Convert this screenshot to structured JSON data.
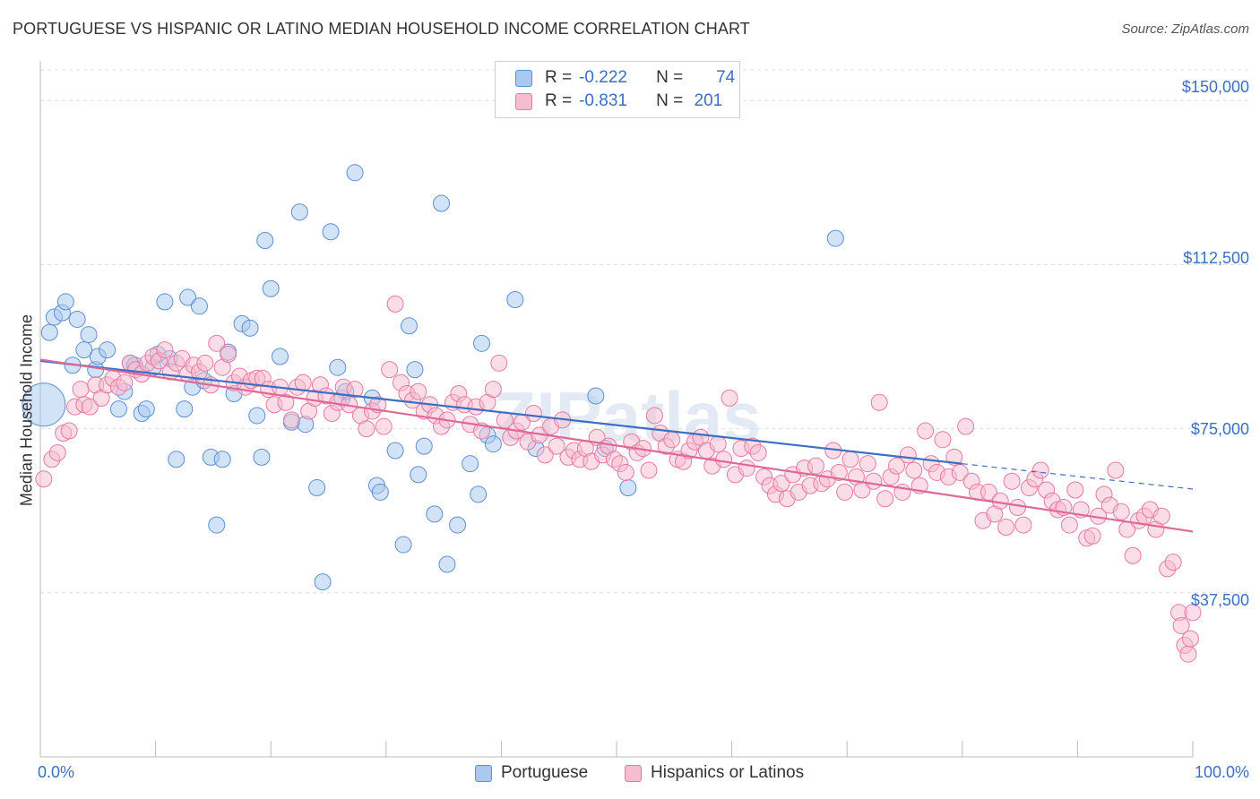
{
  "title": "PORTUGUESE VS HISPANIC OR LATINO MEDIAN HOUSEHOLD INCOME CORRELATION CHART",
  "source": "Source: ZipAtlas.com",
  "watermark": "ZIPatlas",
  "legend": {
    "r_label": "R =",
    "n_label": "N =",
    "rows": [
      {
        "r": "-0.222",
        "n": "74",
        "color": "#a8c8f0",
        "border": "#5b8fd6"
      },
      {
        "r": "-0.831",
        "n": "201",
        "color": "#f8bcd0",
        "border": "#e9799f"
      }
    ]
  },
  "bottom_legend": [
    "Portuguese",
    "Hispanics or Latinos"
  ],
  "chart_data": {
    "type": "scatter",
    "title": "PORTUGUESE VS HISPANIC OR LATINO MEDIAN HOUSEHOLD INCOME CORRELATION CHART",
    "xlabel": "",
    "ylabel": "Median Household Income",
    "xlim": [
      0,
      100
    ],
    "ylim": [
      0,
      157000
    ],
    "x_tick_labels": [
      "0.0%",
      "100.0%"
    ],
    "y_ticks": [
      37500,
      75000,
      112500,
      150000
    ],
    "y_tick_labels": [
      "$37,500",
      "$75,000",
      "$112,500",
      "$150,000"
    ],
    "grid": true,
    "legend_position": "top-center",
    "series": [
      {
        "name": "Portuguese",
        "color": "#a8c8f0",
        "edge": "#5b8fd6",
        "trend": {
          "x0": 0,
          "y0": 90500,
          "x1": 80,
          "y1": 67000,
          "dash_to": 100,
          "dash_y": 61200
        },
        "points": [
          [
            0.3,
            80500
          ],
          [
            0.8,
            97000
          ],
          [
            1.2,
            100500
          ],
          [
            1.9,
            101500
          ],
          [
            2.2,
            104000
          ],
          [
            2.8,
            89500
          ],
          [
            3.2,
            100000
          ],
          [
            3.8,
            93000
          ],
          [
            4.2,
            96500
          ],
          [
            4.8,
            88500
          ],
          [
            5.0,
            91500
          ],
          [
            5.8,
            93000
          ],
          [
            6.8,
            79500
          ],
          [
            7.3,
            83500
          ],
          [
            7.8,
            90000
          ],
          [
            8.2,
            89500
          ],
          [
            8.8,
            78500
          ],
          [
            9.2,
            79500
          ],
          [
            9.8,
            89000
          ],
          [
            10.2,
            92000
          ],
          [
            10.8,
            104000
          ],
          [
            11.2,
            91000
          ],
          [
            11.8,
            68000
          ],
          [
            12.5,
            79500
          ],
          [
            12.8,
            105000
          ],
          [
            13.2,
            84500
          ],
          [
            13.8,
            103000
          ],
          [
            14.2,
            86000
          ],
          [
            14.8,
            68500
          ],
          [
            15.3,
            53000
          ],
          [
            15.8,
            68000
          ],
          [
            16.3,
            92500
          ],
          [
            16.8,
            83000
          ],
          [
            17.5,
            99000
          ],
          [
            18.2,
            98000
          ],
          [
            18.8,
            78000
          ],
          [
            19.2,
            68500
          ],
          [
            19.5,
            118000
          ],
          [
            20.0,
            107000
          ],
          [
            20.8,
            91500
          ],
          [
            21.8,
            76500
          ],
          [
            22.5,
            124500
          ],
          [
            23.0,
            76000
          ],
          [
            24.0,
            61500
          ],
          [
            24.5,
            40000
          ],
          [
            25.2,
            120000
          ],
          [
            25.8,
            89000
          ],
          [
            26.2,
            82000
          ],
          [
            26.5,
            83500
          ],
          [
            27.3,
            133500
          ],
          [
            28.8,
            82000
          ],
          [
            29.2,
            62000
          ],
          [
            29.5,
            60500
          ],
          [
            30.8,
            70000
          ],
          [
            31.5,
            48500
          ],
          [
            32.0,
            98500
          ],
          [
            32.5,
            88500
          ],
          [
            32.8,
            64500
          ],
          [
            33.3,
            71000
          ],
          [
            34.2,
            55500
          ],
          [
            34.8,
            126500
          ],
          [
            35.3,
            44000
          ],
          [
            36.2,
            53000
          ],
          [
            37.3,
            67000
          ],
          [
            38.0,
            60000
          ],
          [
            38.3,
            94500
          ],
          [
            38.8,
            73500
          ],
          [
            39.3,
            71500
          ],
          [
            41.2,
            104500
          ],
          [
            43.0,
            70500
          ],
          [
            48.2,
            82500
          ],
          [
            49.0,
            70500
          ],
          [
            51.0,
            61500
          ],
          [
            69.0,
            118500
          ]
        ]
      },
      {
        "name": "Hispanics or Latinos",
        "color": "#f8bcd0",
        "edge": "#e9799f",
        "trend": {
          "x0": 0,
          "y0": 90800,
          "x1": 100,
          "y1": 51500
        },
        "points": [
          [
            0.3,
            63500
          ],
          [
            1.0,
            68000
          ],
          [
            1.5,
            69500
          ],
          [
            2.0,
            74000
          ],
          [
            2.5,
            74500
          ],
          [
            3.0,
            80000
          ],
          [
            3.5,
            84000
          ],
          [
            3.8,
            80500
          ],
          [
            4.3,
            80000
          ],
          [
            4.8,
            85000
          ],
          [
            5.3,
            82000
          ],
          [
            5.8,
            85000
          ],
          [
            6.3,
            86500
          ],
          [
            6.8,
            84500
          ],
          [
            7.3,
            85500
          ],
          [
            7.8,
            90000
          ],
          [
            8.3,
            88500
          ],
          [
            8.8,
            87500
          ],
          [
            9.3,
            90000
          ],
          [
            9.8,
            91500
          ],
          [
            10.3,
            90500
          ],
          [
            10.8,
            93000
          ],
          [
            11.3,
            88000
          ],
          [
            11.8,
            90000
          ],
          [
            12.3,
            91000
          ],
          [
            12.8,
            87500
          ],
          [
            13.3,
            89500
          ],
          [
            13.8,
            88000
          ],
          [
            14.3,
            90000
          ],
          [
            14.8,
            85000
          ],
          [
            15.3,
            94500
          ],
          [
            15.8,
            89000
          ],
          [
            16.3,
            92000
          ],
          [
            16.8,
            85500
          ],
          [
            17.3,
            87000
          ],
          [
            17.8,
            84500
          ],
          [
            18.3,
            86000
          ],
          [
            18.8,
            86500
          ],
          [
            19.3,
            86500
          ],
          [
            19.8,
            84000
          ],
          [
            20.3,
            80500
          ],
          [
            20.8,
            84500
          ],
          [
            21.3,
            81000
          ],
          [
            21.8,
            77000
          ],
          [
            22.3,
            84500
          ],
          [
            22.8,
            85500
          ],
          [
            23.3,
            79000
          ],
          [
            23.8,
            82000
          ],
          [
            24.3,
            85000
          ],
          [
            24.8,
            82500
          ],
          [
            25.3,
            78500
          ],
          [
            25.8,
            81000
          ],
          [
            26.3,
            84500
          ],
          [
            26.8,
            80500
          ],
          [
            27.3,
            84000
          ],
          [
            27.8,
            78000
          ],
          [
            28.3,
            75000
          ],
          [
            28.8,
            79000
          ],
          [
            29.3,
            80500
          ],
          [
            29.8,
            75500
          ],
          [
            30.3,
            88500
          ],
          [
            30.8,
            103500
          ],
          [
            31.3,
            85500
          ],
          [
            31.8,
            83000
          ],
          [
            32.3,
            81500
          ],
          [
            32.8,
            83500
          ],
          [
            33.3,
            79000
          ],
          [
            33.8,
            80500
          ],
          [
            34.3,
            78000
          ],
          [
            34.8,
            75500
          ],
          [
            35.3,
            77000
          ],
          [
            35.8,
            81000
          ],
          [
            36.3,
            83000
          ],
          [
            36.8,
            80500
          ],
          [
            37.3,
            76000
          ],
          [
            37.8,
            80000
          ],
          [
            38.3,
            74500
          ],
          [
            38.8,
            81000
          ],
          [
            39.3,
            84000
          ],
          [
            39.8,
            90000
          ],
          [
            40.3,
            77000
          ],
          [
            40.8,
            73000
          ],
          [
            41.3,
            74500
          ],
          [
            41.8,
            76500
          ],
          [
            42.3,
            72000
          ],
          [
            42.8,
            78500
          ],
          [
            43.3,
            73500
          ],
          [
            43.8,
            69000
          ],
          [
            44.3,
            75500
          ],
          [
            44.8,
            71000
          ],
          [
            45.3,
            77000
          ],
          [
            45.8,
            68500
          ],
          [
            46.3,
            70000
          ],
          [
            46.8,
            68000
          ],
          [
            47.3,
            70500
          ],
          [
            47.8,
            67500
          ],
          [
            48.3,
            73000
          ],
          [
            48.8,
            69000
          ],
          [
            49.3,
            71000
          ],
          [
            49.8,
            68000
          ],
          [
            50.3,
            67000
          ],
          [
            50.8,
            65000
          ],
          [
            51.3,
            72000
          ],
          [
            51.8,
            69500
          ],
          [
            52.3,
            70500
          ],
          [
            52.8,
            65500
          ],
          [
            53.3,
            78000
          ],
          [
            53.8,
            74000
          ],
          [
            54.3,
            71000
          ],
          [
            54.8,
            72500
          ],
          [
            55.3,
            68000
          ],
          [
            55.8,
            67500
          ],
          [
            56.3,
            70000
          ],
          [
            56.8,
            72000
          ],
          [
            57.3,
            73000
          ],
          [
            57.8,
            70000
          ],
          [
            58.3,
            66500
          ],
          [
            58.8,
            71500
          ],
          [
            59.3,
            68000
          ],
          [
            59.8,
            82000
          ],
          [
            60.3,
            64500
          ],
          [
            60.8,
            70500
          ],
          [
            61.3,
            66000
          ],
          [
            61.8,
            71000
          ],
          [
            62.3,
            69500
          ],
          [
            62.8,
            64000
          ],
          [
            63.3,
            62000
          ],
          [
            63.8,
            60000
          ],
          [
            64.3,
            62500
          ],
          [
            64.8,
            59000
          ],
          [
            65.3,
            64500
          ],
          [
            65.8,
            60500
          ],
          [
            66.3,
            66000
          ],
          [
            66.8,
            62000
          ],
          [
            67.3,
            66500
          ],
          [
            67.8,
            62500
          ],
          [
            68.3,
            63500
          ],
          [
            68.8,
            70000
          ],
          [
            69.3,
            65000
          ],
          [
            69.8,
            60500
          ],
          [
            70.3,
            68000
          ],
          [
            70.8,
            64000
          ],
          [
            71.3,
            61000
          ],
          [
            71.8,
            67000
          ],
          [
            72.3,
            63000
          ],
          [
            72.8,
            81000
          ],
          [
            73.3,
            59000
          ],
          [
            73.8,
            64000
          ],
          [
            74.3,
            66500
          ],
          [
            74.8,
            60500
          ],
          [
            75.3,
            69000
          ],
          [
            75.8,
            65500
          ],
          [
            76.3,
            62000
          ],
          [
            76.8,
            74500
          ],
          [
            77.3,
            67000
          ],
          [
            77.8,
            65000
          ],
          [
            78.3,
            72500
          ],
          [
            78.8,
            64000
          ],
          [
            79.3,
            68500
          ],
          [
            79.8,
            65000
          ],
          [
            80.3,
            75500
          ],
          [
            80.8,
            63000
          ],
          [
            81.3,
            60500
          ],
          [
            81.8,
            54000
          ],
          [
            82.3,
            60500
          ],
          [
            82.8,
            55500
          ],
          [
            83.3,
            58500
          ],
          [
            83.8,
            52500
          ],
          [
            84.3,
            63000
          ],
          [
            84.8,
            57000
          ],
          [
            85.3,
            53000
          ],
          [
            85.8,
            61500
          ],
          [
            86.3,
            63500
          ],
          [
            86.8,
            65500
          ],
          [
            87.3,
            61000
          ],
          [
            87.8,
            58500
          ],
          [
            88.3,
            56500
          ],
          [
            88.8,
            57000
          ],
          [
            89.3,
            53000
          ],
          [
            89.8,
            61000
          ],
          [
            90.3,
            56500
          ],
          [
            90.8,
            50000
          ],
          [
            91.3,
            50500
          ],
          [
            91.8,
            55000
          ],
          [
            92.3,
            60000
          ],
          [
            92.8,
            57500
          ],
          [
            93.3,
            65500
          ],
          [
            93.8,
            56000
          ],
          [
            94.3,
            52000
          ],
          [
            94.8,
            46000
          ],
          [
            95.3,
            54000
          ],
          [
            95.8,
            55000
          ],
          [
            96.3,
            56500
          ],
          [
            96.8,
            52000
          ],
          [
            97.3,
            55000
          ],
          [
            97.8,
            43000
          ],
          [
            98.3,
            44500
          ],
          [
            98.8,
            33000
          ],
          [
            99.0,
            30000
          ],
          [
            99.3,
            25500
          ],
          [
            99.6,
            23500
          ],
          [
            99.8,
            27000
          ],
          [
            100.0,
            33000
          ]
        ]
      }
    ]
  }
}
